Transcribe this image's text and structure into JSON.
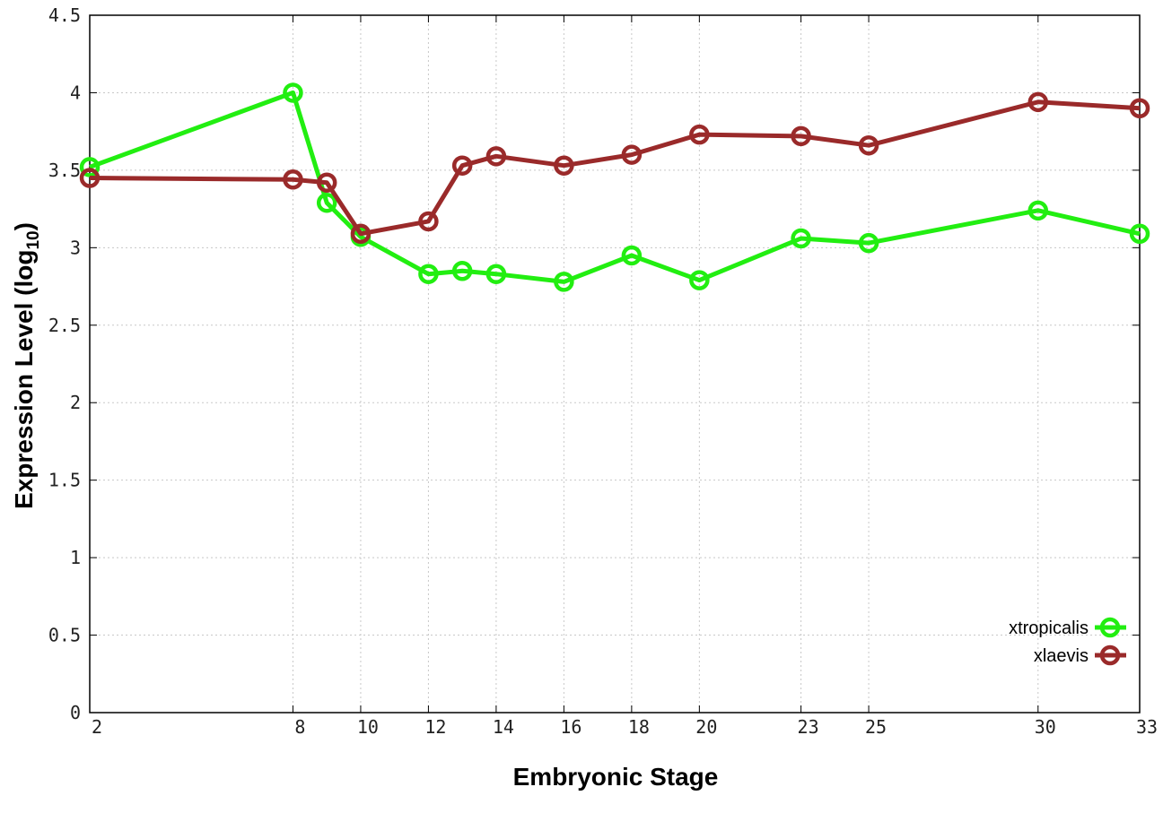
{
  "chart_data": {
    "type": "line",
    "xlabel": "Embryonic Stage",
    "ylabel": "Expression Level (log",
    "ylabel_sub": "10",
    "ylabel_close": ")",
    "x": [
      2,
      8,
      9,
      10,
      12,
      13,
      14,
      16,
      18,
      20,
      23,
      25,
      30,
      33
    ],
    "x_ticks": [
      "2",
      "8",
      "10",
      "12",
      "14",
      "16",
      "18",
      "20",
      "23",
      "25",
      "30",
      "33"
    ],
    "y_ticks": [
      "0",
      "0.5",
      "1",
      "1.5",
      "2",
      "2.5",
      "3",
      "3.5",
      "4",
      "4.5"
    ],
    "xlim": [
      2,
      33
    ],
    "ylim": [
      0,
      4.5
    ],
    "grid": true,
    "legend_position": "bottom-right",
    "series": [
      {
        "name": "xtropicalis",
        "color": "#22ee11",
        "values": [
          3.52,
          4.0,
          3.29,
          3.07,
          2.83,
          2.85,
          2.83,
          2.78,
          2.95,
          2.79,
          3.06,
          3.03,
          3.24,
          3.09
        ]
      },
      {
        "name": "xlaevis",
        "color": "#9a2a2a",
        "values": [
          3.45,
          3.44,
          3.42,
          3.09,
          3.17,
          3.53,
          3.59,
          3.53,
          3.6,
          3.73,
          3.72,
          3.66,
          3.94,
          3.9
        ]
      }
    ]
  }
}
